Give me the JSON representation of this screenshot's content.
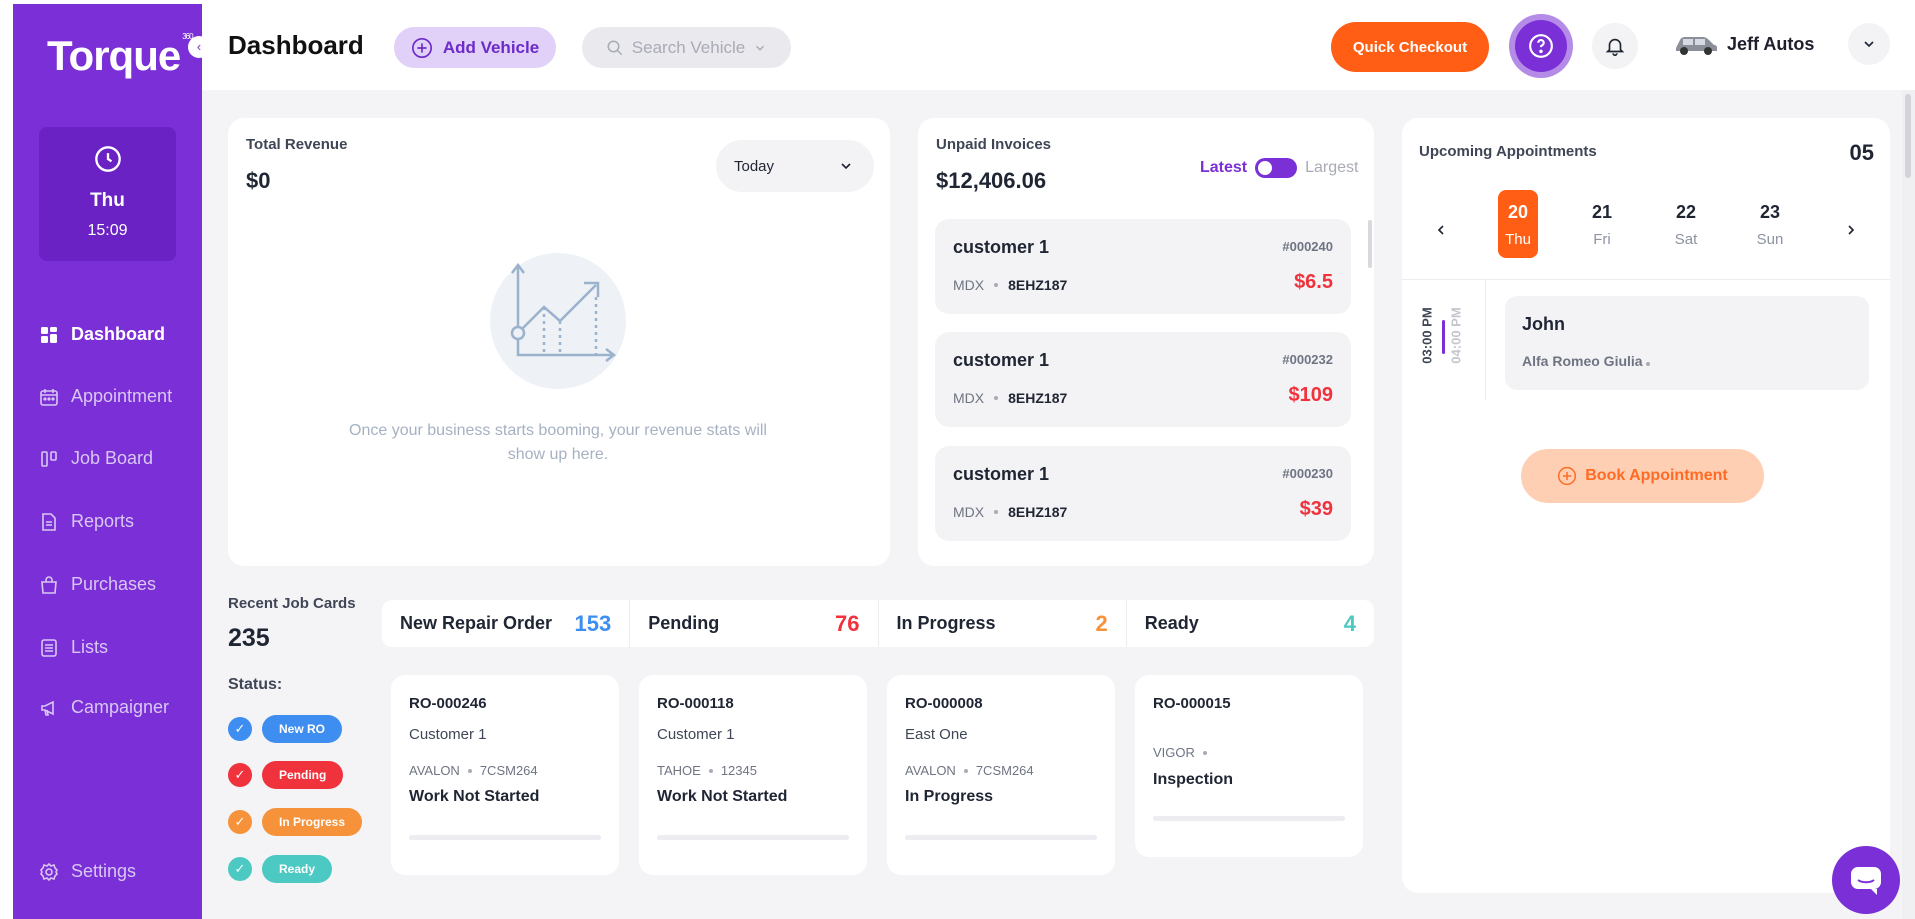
{
  "sidebar": {
    "logo": "Torque",
    "logo_sup": "360",
    "clock": {
      "day": "Thu",
      "time": "15:09"
    },
    "items": [
      {
        "label": "Dashboard",
        "icon": "grid-icon"
      },
      {
        "label": "Appointment",
        "icon": "calendar-icon"
      },
      {
        "label": "Job Board",
        "icon": "board-icon"
      },
      {
        "label": "Reports",
        "icon": "report-icon"
      },
      {
        "label": "Purchases",
        "icon": "bag-icon"
      },
      {
        "label": "Lists",
        "icon": "list-icon"
      },
      {
        "label": "Campaigner",
        "icon": "megaphone-icon"
      },
      {
        "label": "Settings",
        "icon": "gear-icon"
      }
    ]
  },
  "header": {
    "title": "Dashboard",
    "add_vehicle": "Add Vehicle",
    "search_placeholder": "Search Vehicle",
    "quick_checkout": "Quick Checkout",
    "user_name": "Jeff Autos"
  },
  "revenue": {
    "title": "Total Revenue",
    "value": "$0",
    "period": "Today",
    "empty_text": "Once your business starts booming, your revenue stats will show up here."
  },
  "invoices": {
    "title": "Unpaid Invoices",
    "total": "$12,406.06",
    "sort_latest": "Latest",
    "sort_largest": "Largest",
    "items": [
      {
        "customer": "customer 1",
        "number": "#000240",
        "model": "MDX",
        "plate": "8EHZ187",
        "amount": "$6.5"
      },
      {
        "customer": "customer 1",
        "number": "#000232",
        "model": "MDX",
        "plate": "8EHZ187",
        "amount": "$109"
      },
      {
        "customer": "customer 1",
        "number": "#000230",
        "model": "MDX",
        "plate": "8EHZ187",
        "amount": "$39"
      }
    ]
  },
  "appointments": {
    "title": "Upcoming Appointments",
    "count": "05",
    "days": [
      {
        "num": "20",
        "dow": "Thu"
      },
      {
        "num": "21",
        "dow": "Fri"
      },
      {
        "num": "22",
        "dow": "Sat"
      },
      {
        "num": "23",
        "dow": "Sun"
      }
    ],
    "item": {
      "start": "03:00 PM",
      "end": "04:00 PM",
      "name": "John",
      "car": "Alfa Romeo Giulia"
    },
    "book_label": "Book Appointment"
  },
  "jobs": {
    "title": "Recent Job Cards",
    "count": "235",
    "status_label": "Status:",
    "statuses": [
      "New RO",
      "Pending",
      "In Progress",
      "Ready"
    ],
    "colors": {
      "new_ro": "#3d8ef0",
      "pending": "#f0323c",
      "in_progress": "#f6923a",
      "ready": "#4cc9c2"
    },
    "tabs": [
      {
        "label": "New Repair Order",
        "count": "153"
      },
      {
        "label": "Pending",
        "count": "76"
      },
      {
        "label": "In Progress",
        "count": "2"
      },
      {
        "label": "Ready",
        "count": "4"
      }
    ],
    "cards": [
      {
        "ro": "RO-000246",
        "customer": "Customer 1",
        "model": "AVALON",
        "plate": "7CSM264",
        "status": "Work Not Started"
      },
      {
        "ro": "RO-000118",
        "customer": "Customer 1",
        "model": "TAHOE",
        "plate": "12345",
        "status": "Work Not Started"
      },
      {
        "ro": "RO-000008",
        "customer": "East One",
        "model": "AVALON",
        "plate": "7CSM264",
        "status": "In Progress"
      },
      {
        "ro": "RO-000015",
        "customer": "",
        "model": "VIGOR",
        "plate": "",
        "status": "Inspection"
      }
    ]
  }
}
